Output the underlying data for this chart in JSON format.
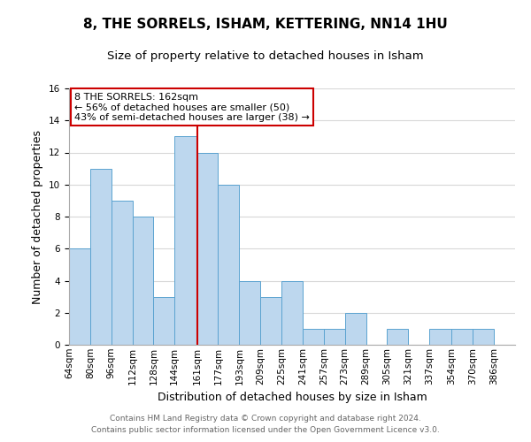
{
  "title": "8, THE SORRELS, ISHAM, KETTERING, NN14 1HU",
  "subtitle": "Size of property relative to detached houses in Isham",
  "xlabel": "Distribution of detached houses by size in Isham",
  "ylabel": "Number of detached properties",
  "bin_labels": [
    "64sqm",
    "80sqm",
    "96sqm",
    "112sqm",
    "128sqm",
    "144sqm",
    "161sqm",
    "177sqm",
    "193sqm",
    "209sqm",
    "225sqm",
    "241sqm",
    "257sqm",
    "273sqm",
    "289sqm",
    "305sqm",
    "321sqm",
    "337sqm",
    "354sqm",
    "370sqm",
    "386sqm"
  ],
  "bin_edges": [
    64,
    80,
    96,
    112,
    128,
    144,
    161,
    177,
    193,
    209,
    225,
    241,
    257,
    273,
    289,
    305,
    321,
    337,
    354,
    370,
    386
  ],
  "counts": [
    6,
    11,
    9,
    8,
    3,
    13,
    12,
    10,
    4,
    3,
    4,
    1,
    1,
    2,
    0,
    1,
    0,
    1,
    1,
    1,
    0
  ],
  "bar_color": "#bdd7ee",
  "bar_edge_color": "#5ba3d0",
  "vline_x": 161,
  "vline_color": "#cc0000",
  "annotation_title": "8 THE SORRELS: 162sqm",
  "annotation_line1": "← 56% of detached houses are smaller (50)",
  "annotation_line2": "43% of semi-detached houses are larger (38) →",
  "annotation_box_edge": "#cc0000",
  "ylim": [
    0,
    16
  ],
  "yticks": [
    0,
    2,
    4,
    6,
    8,
    10,
    12,
    14,
    16
  ],
  "footer1": "Contains HM Land Registry data © Crown copyright and database right 2024.",
  "footer2": "Contains public sector information licensed under the Open Government Licence v3.0.",
  "title_fontsize": 11,
  "subtitle_fontsize": 9.5,
  "axis_label_fontsize": 9,
  "tick_fontsize": 7.5,
  "footer_fontsize": 6.5,
  "background_color": "#ffffff",
  "grid_color": "#d8d8d8"
}
